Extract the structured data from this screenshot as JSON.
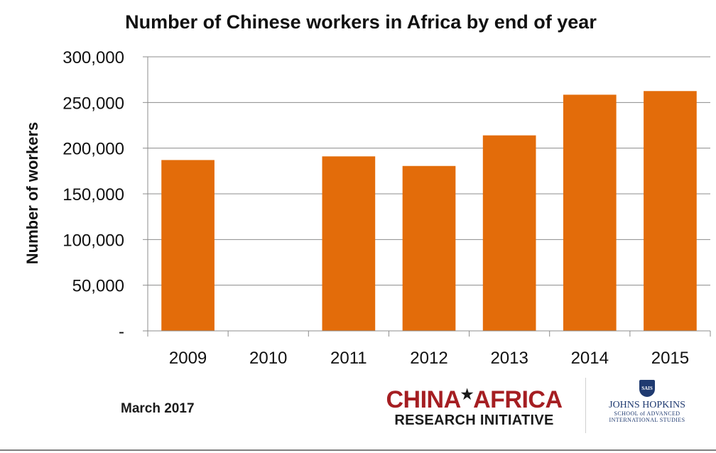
{
  "chart_data": {
    "type": "bar",
    "title": "Number of Chinese workers in Africa by end of year",
    "ylabel": "Number of workers",
    "xlabel": "",
    "categories": [
      "2009",
      "2010",
      "2011",
      "2012",
      "2013",
      "2014",
      "2015"
    ],
    "values": [
      187000,
      null,
      191000,
      180500,
      214000,
      258500,
      262500
    ],
    "ylim": [
      0,
      300000
    ],
    "yticks": [
      {
        "value": 0,
        "label": "-"
      },
      {
        "value": 50000,
        "label": "50,000"
      },
      {
        "value": 100000,
        "label": "100,000"
      },
      {
        "value": 150000,
        "label": "150,000"
      },
      {
        "value": 200000,
        "label": "200,000"
      },
      {
        "value": 250000,
        "label": "250,000"
      },
      {
        "value": 300000,
        "label": "300,000"
      }
    ],
    "grid": true,
    "legend": "none",
    "bar_color": "#e36c0a"
  },
  "footer": {
    "date_note": "March 2017",
    "logo_cari_line1": "CHINA",
    "logo_cari_star": "★",
    "logo_cari_line1b": "AFRICA",
    "logo_cari_line2": "RESEARCH INITIATIVE",
    "logo_jhu_shield": "SAIS",
    "logo_jhu_name": "JOHNS HOPKINS",
    "logo_jhu_school_1": "SCHOOL of ADVANCED",
    "logo_jhu_school_2": "INTERNATIONAL STUDIES"
  }
}
